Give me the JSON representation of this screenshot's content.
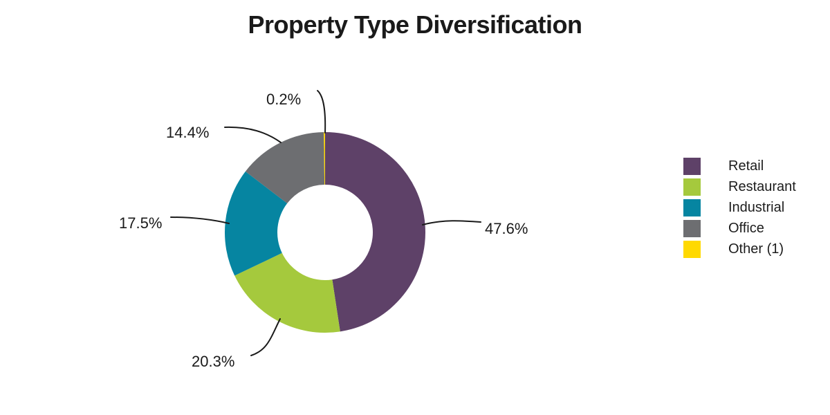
{
  "chart_data": {
    "type": "pie",
    "subtype": "donut",
    "title": "Property Type Diversification",
    "legend_position": "right",
    "direction": "clockwise",
    "start_angle_deg": 0,
    "donut_hole_ratio": 0.48,
    "background_color": "#ffffff",
    "leader_line_color": "#1a1a1a",
    "segments": [
      {
        "label": "Retail",
        "value": 47.6,
        "display": "47.6%",
        "color": "#5E4168"
      },
      {
        "label": "Restaurant",
        "value": 20.3,
        "display": "20.3%",
        "color": "#A5C93D"
      },
      {
        "label": "Industrial",
        "value": 17.5,
        "display": "17.5%",
        "color": "#0685A1"
      },
      {
        "label": "Office",
        "value": 14.4,
        "display": "14.4%",
        "color": "#6D6E71"
      },
      {
        "label": "Other (1)",
        "value": 0.2,
        "display": "0.2%",
        "color": "#FFD900"
      }
    ]
  }
}
